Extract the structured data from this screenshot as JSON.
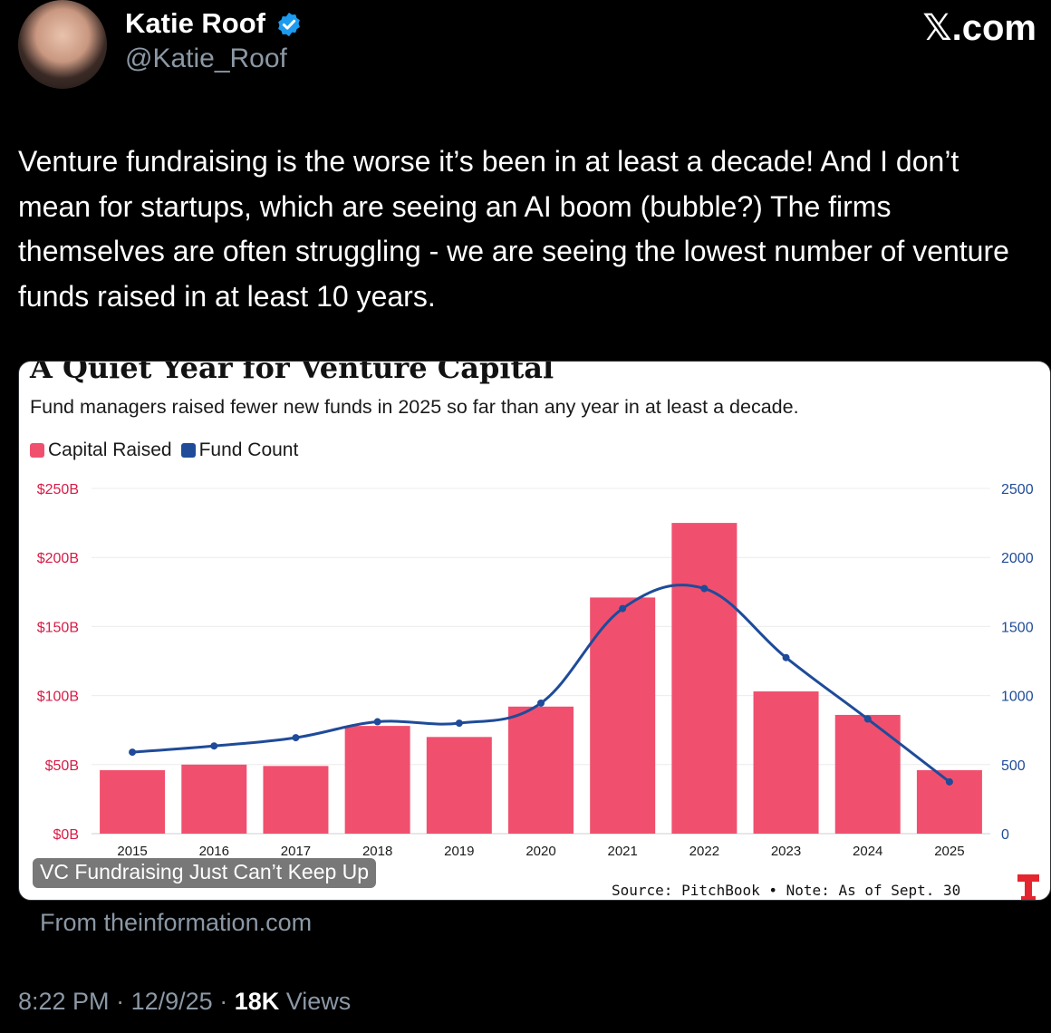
{
  "author": {
    "name": "Katie Roof",
    "handle": "@Katie_Roof",
    "verified": true
  },
  "brand": "𝕏.com",
  "tweet_text": "Venture fundraising is the worse it’s been in at least a decade! And I don’t mean for startups, which are seeing an AI boom (bubble?) The firms themselves are often struggling - we are seeing the lowest number of venture funds raised in at least 10 years.",
  "card": {
    "caption": "VC Fundraising Just Can’t Keep Up",
    "source_note": "Source: PitchBook • Note: As of Sept. 30",
    "from_link": "From theinformation.com"
  },
  "chart_data": {
    "type": "bar",
    "title": "A Quiet Year for Venture Capital",
    "subtitle": "Fund managers raised fewer new funds in 2025 so far than any year in at least a decade.",
    "categories": [
      "2015",
      "2016",
      "2017",
      "2018",
      "2019",
      "2020",
      "2021",
      "2022",
      "2023",
      "2024",
      "2025"
    ],
    "series": [
      {
        "name": "Capital Raised",
        "type": "bar",
        "axis": "left",
        "color": "#f0506e",
        "values": [
          46,
          50,
          49,
          78,
          70,
          92,
          171,
          225,
          103,
          86,
          46
        ]
      },
      {
        "name": "Fund Count",
        "type": "line",
        "axis": "right",
        "color": "#1f4b99",
        "values": [
          590,
          635,
          695,
          810,
          800,
          945,
          1630,
          1775,
          1275,
          830,
          375
        ]
      }
    ],
    "left_axis": {
      "ticks": [
        "$0B",
        "$50B",
        "$100B",
        "$150B",
        "$200B",
        "$250B"
      ],
      "ylim": [
        0,
        250
      ],
      "color": "#d81b45"
    },
    "right_axis": {
      "ticks": [
        "0",
        "500",
        "1000",
        "1500",
        "2000",
        "2500"
      ],
      "ylim": [
        0,
        2500
      ],
      "color": "#1f4b99"
    },
    "grid": true,
    "legend_placement": "top-left"
  },
  "meta": {
    "time": "8:22 PM",
    "date": "12/9/25",
    "views_count": "18K",
    "views_label": "Views"
  }
}
